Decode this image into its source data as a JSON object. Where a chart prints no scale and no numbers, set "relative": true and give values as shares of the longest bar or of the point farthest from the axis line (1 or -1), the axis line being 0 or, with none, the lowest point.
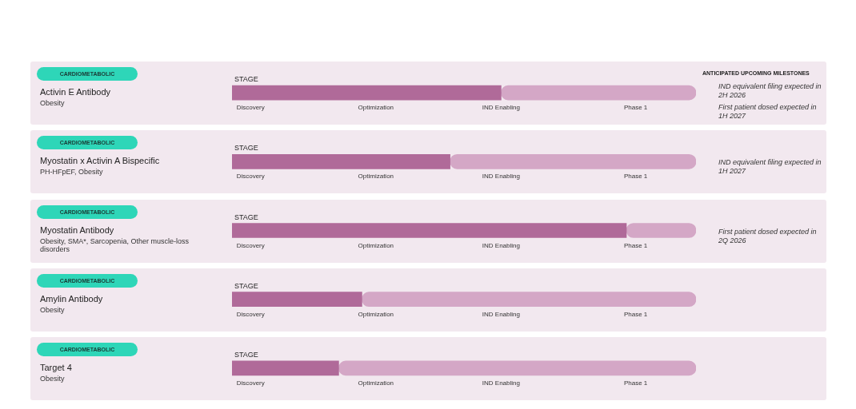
{
  "chart_data": {
    "type": "bar",
    "orientation": "horizontal",
    "stacked": true,
    "relative": true,
    "legend": false,
    "categories": [
      "Activin E Antibody",
      "Myostatin x Activin A Bispecific",
      "Myostatin Antibody",
      "Amylin Antibody",
      "Target 4"
    ],
    "series": [
      {
        "color": "#b06a99",
        "values": [
          0.58,
          0.47,
          0.85,
          0.28,
          0.23
        ]
      },
      {
        "color": "#d4a7c6",
        "values": [
          0.42,
          0.53,
          0.15,
          0.72,
          0.77
        ]
      }
    ],
    "annotations": [
      "ANTICIPATED UPCOMING MILESTONES",
      "CARDIOMETABOLIC",
      "Obesity",
      "STAGE",
      "Discovery",
      "Optimization",
      "IND Enabling",
      "Phase 1",
      "IND equivalent filing expected in 2H 2026",
      "First patient dosed expected in 1H 2027",
      "CARDIOMETABOLIC",
      "PH-HFpEF, Obesity",
      "STAGE",
      "Discovery",
      "Optimization",
      "IND Enabling",
      "Phase 1",
      "IND equivalent filing expected in 1H 2027",
      "CARDIOMETABOLIC",
      "Obesity, SMA*, Sarcopenia, Other muscle-loss disorders",
      "STAGE",
      "Discovery",
      "Optimization",
      "IND Enabling",
      "Phase 1",
      "First patient dosed expected in 2Q 2026",
      "CARDIOMETABOLIC",
      "Obesity",
      "STAGE",
      "Discovery",
      "Optimization",
      "IND Enabling",
      "Phase 1",
      "CARDIOMETABOLIC",
      "Obesity",
      "STAGE",
      "Discovery",
      "Optimization",
      "IND Enabling",
      "Phase 1"
    ]
  }
}
